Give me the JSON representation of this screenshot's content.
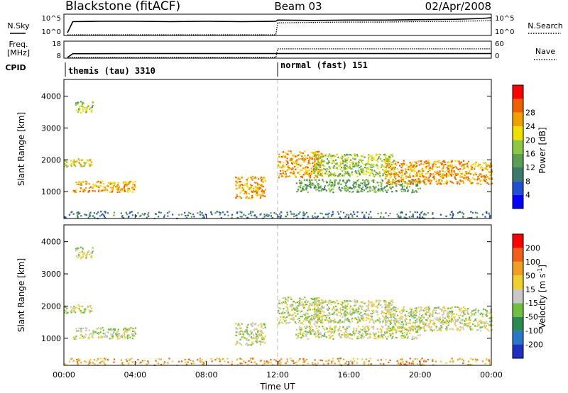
{
  "header": {
    "station": "Blackstone (fitACF)",
    "beam": "Beam 03",
    "date": "02/Apr/2008"
  },
  "colors": {
    "power": [
      "#0000ff",
      "#2050d0",
      "#3a7a6a",
      "#5aa050",
      "#8cc840",
      "#f0e000",
      "#f0a000",
      "#f06000",
      "#ff0000"
    ],
    "velocity": [
      "#2030c0",
      "#2878c8",
      "#2a8a50",
      "#70c040",
      "#c8c8c8",
      "#f0d030",
      "#f0a020",
      "#f06018",
      "#ff0000"
    ],
    "ground_scatter": "#c8c8c8"
  },
  "chart_data": [
    {
      "type": "line",
      "panel": "nsky-nsearch",
      "left_label": "N.Sky",
      "right_label": "N.Search",
      "left_ticks": [
        "10^5",
        "10^0"
      ],
      "right_ticks": [
        "10^5",
        "10^0"
      ],
      "x": [
        0.2,
        0.5,
        2,
        4,
        6,
        8,
        10,
        11.9,
        12,
        14,
        16,
        18,
        20,
        22,
        23.5,
        24
      ],
      "series": [
        {
          "values": [
            0.5,
            3.3,
            3.4,
            3.4,
            3.3,
            3.4,
            3.3,
            3.4,
            3.7,
            3.6,
            3.7,
            3.7,
            3.8,
            3.9,
            4.1,
            4.3
          ]
        },
        {
          "values": [
            0,
            0,
            0,
            0,
            0,
            0,
            0,
            0,
            3.0,
            3.1,
            3.2,
            3.2,
            3.3,
            3.4,
            3.5,
            3.7
          ]
        }
      ]
    },
    {
      "type": "line",
      "panel": "frequency-nave",
      "left_label": "Freq.",
      "left_unit": "[MHz]",
      "right_label": "Nave",
      "left_ticks": [
        "18",
        "8"
      ],
      "right_ticks": [
        "60",
        "0"
      ],
      "x": [
        0.2,
        0.5,
        4,
        8,
        11.9,
        12,
        16,
        20,
        21.5,
        22,
        24
      ],
      "series": [
        {
          "values": [
            8,
            10.4,
            10.5,
            10.5,
            10.5,
            10.5,
            10.5,
            10.5,
            10.5,
            10.5,
            10.5
          ]
        },
        {
          "values": [
            0,
            0,
            0,
            0,
            0,
            33,
            33,
            33,
            33,
            33,
            33
          ]
        }
      ]
    },
    {
      "type": "table",
      "panel": "cpid",
      "label": "CPID",
      "segments": [
        {
          "start": 0.0,
          "label": "themis (tau) 3310"
        },
        {
          "start": 12.0,
          "label": "normal (fast) 151"
        }
      ]
    },
    {
      "type": "heatmap",
      "panel": "power",
      "ylabel": "Slant Range [km]",
      "ylim": [
        180,
        4500
      ],
      "yticks": [
        "1000",
        "2000",
        "3000",
        "4000"
      ],
      "xlim": [
        0,
        24
      ],
      "colorbar_label": "Power [dB]",
      "colorbar_ticks": [
        "4",
        "8",
        "12",
        "16",
        "20",
        "24",
        "28"
      ],
      "scatter_regions": [
        {
          "t0": 0.0,
          "t1": 1.6,
          "r0": 1800,
          "r1": 2050,
          "level": 5
        },
        {
          "t0": 0.6,
          "t1": 1.6,
          "r0": 3500,
          "r1": 3850,
          "level": 4
        },
        {
          "t0": 0.5,
          "t1": 4.0,
          "r0": 1000,
          "r1": 1350,
          "level": 6
        },
        {
          "t0": 9.6,
          "t1": 11.3,
          "r0": 800,
          "r1": 1500,
          "level": 6
        },
        {
          "t0": 12.0,
          "t1": 14.5,
          "r0": 1450,
          "r1": 2300,
          "level": 6
        },
        {
          "t0": 13.0,
          "t1": 20.0,
          "r0": 1000,
          "r1": 1400,
          "level": 3
        },
        {
          "t0": 14.0,
          "t1": 18.5,
          "r0": 1500,
          "r1": 2200,
          "level": 4
        },
        {
          "t0": 18.0,
          "t1": 24.0,
          "r0": 1250,
          "r1": 2000,
          "level": 6
        },
        {
          "t0": 0.0,
          "t1": 24.0,
          "r0": 180,
          "r1": 400,
          "level": 2
        }
      ]
    },
    {
      "type": "heatmap",
      "panel": "velocity",
      "ylabel": "Slant Range [km]",
      "ylim": [
        180,
        4500
      ],
      "yticks": [
        "1000",
        "2000",
        "3000",
        "4000"
      ],
      "xlim": [
        0,
        24
      ],
      "xlabel": "Time UT",
      "xticks": [
        "00:00",
        "04:00",
        "08:00",
        "12:00",
        "16:00",
        "20:00",
        "00:00"
      ],
      "colorbar_label": "Velocity [m s",
      "colorbar_exponent": "-1",
      "colorbar_label_close": "]",
      "colorbar_ticks": [
        "200",
        "100",
        "50",
        "15",
        "-15",
        "-50",
        "-100",
        "-200"
      ],
      "scatter_regions": [
        {
          "t0": 0.0,
          "t1": 1.6,
          "r0": 1800,
          "r1": 2050,
          "level": 4
        },
        {
          "t0": 0.6,
          "t1": 1.6,
          "r0": 3500,
          "r1": 3850,
          "level": 4
        },
        {
          "t0": 0.5,
          "t1": 4.0,
          "r0": 1000,
          "r1": 1350,
          "level": 4
        },
        {
          "t0": 9.6,
          "t1": 11.3,
          "r0": 800,
          "r1": 1500,
          "level": 4
        },
        {
          "t0": 12.0,
          "t1": 14.5,
          "r0": 1450,
          "r1": 2300,
          "level": 4
        },
        {
          "t0": 13.0,
          "t1": 20.0,
          "r0": 1000,
          "r1": 1400,
          "level": 4
        },
        {
          "t0": 14.0,
          "t1": 18.5,
          "r0": 1500,
          "r1": 2200,
          "level": 4
        },
        {
          "t0": 18.0,
          "t1": 24.0,
          "r0": 1250,
          "r1": 2000,
          "level": 4
        },
        {
          "t0": 0.0,
          "t1": 24.0,
          "r0": 180,
          "r1": 400,
          "level": 6
        }
      ]
    }
  ]
}
